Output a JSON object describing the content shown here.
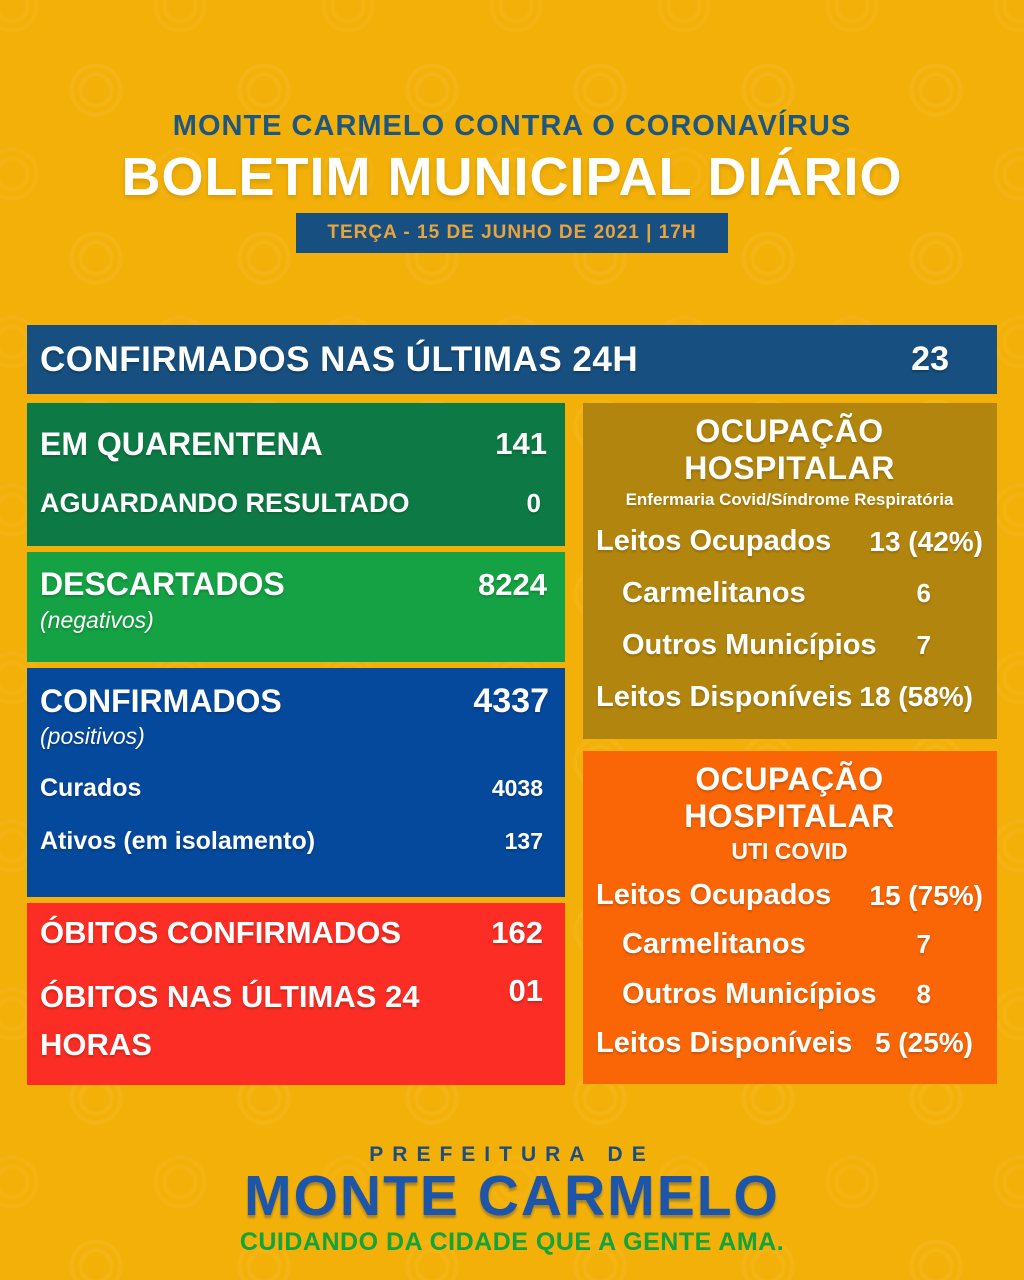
{
  "header": {
    "supertitle": "MONTE CARMELO CONTRA O CORONAVÍRUS",
    "title": "BOLETIM MUNICIPAL DIÁRIO",
    "date_badge": "TERÇA - 15 DE JUNHO DE 2021 | 17H"
  },
  "confirmed_24h": {
    "label": "CONFIRMADOS NAS ÚLTIMAS 24H",
    "value": "23"
  },
  "quarantine": {
    "rows": [
      {
        "label": "EM QUARENTENA",
        "value": "141"
      },
      {
        "label": "AGUARDANDO RESULTADO",
        "value": "0"
      }
    ]
  },
  "discarded": {
    "label": "DESCARTADOS",
    "sublabel": "(negativos)",
    "value": "8224"
  },
  "confirmed": {
    "label": "CONFIRMADOS",
    "sublabel": "(positivos)",
    "value": "4337",
    "rows": [
      {
        "label": "Curados",
        "value": "4038"
      },
      {
        "label": "Ativos (em isolamento)",
        "value": "137"
      }
    ]
  },
  "deaths": {
    "rows": [
      {
        "label": "ÓBITOS CONFIRMADOS",
        "value": "162"
      },
      {
        "label": "ÓBITOS NAS ÚLTIMAS 24 HORAS",
        "value": "01"
      }
    ]
  },
  "hospital_ward": {
    "title": "OCUPAÇÃO HOSPITALAR",
    "subtitle": "Enfermaria Covid/Síndrome Respiratória",
    "rows": [
      {
        "label": "Leitos Ocupados",
        "value": "13 (42%)"
      },
      {
        "label": "Carmelitanos",
        "value": "6"
      },
      {
        "label": "Outros Municípios",
        "value": "7"
      },
      {
        "label": "Leitos Disponíveis",
        "value": "18 (58%)"
      }
    ]
  },
  "icu": {
    "title": "OCUPAÇÃO HOSPITALAR",
    "subtitle": "UTI COVID",
    "rows": [
      {
        "label": "Leitos Ocupados",
        "value": "15 (75%)"
      },
      {
        "label": "Carmelitanos",
        "value": "7"
      },
      {
        "label": "Outros Municípios",
        "value": "8"
      },
      {
        "label": "Leitos Disponíveis",
        "value": "5 (25%)"
      }
    ]
  },
  "footer": {
    "superline": "PREFEITURA DE",
    "city_name": "MONTE CARMELO",
    "tagline": "CUIDANDO DA CIDADE QUE A GENTE AMA."
  },
  "colors": {
    "background_yellow": "#f3b008",
    "navy_blue": "#175080",
    "badge_text_gold": "#eaa43c",
    "dark_green": "#0d7a45",
    "bright_green": "#14a244",
    "royal_blue": "#05499d",
    "red": "#fb2d24",
    "gold_box": "#b2860e",
    "orange_box": "#fa6606",
    "logo_blue": "#1d55a8",
    "tagline_green": "#12a33c"
  }
}
